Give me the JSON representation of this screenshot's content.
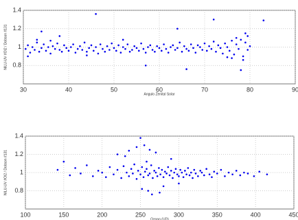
{
  "chart_data": [
    {
      "type": "scatter",
      "xlabel": "Angulo Zenital Solar",
      "ylabel": "NILU-UV #OI2 / Dobson #131",
      "color": "#0000ee",
      "grid": true,
      "xlim": [
        30,
        90
      ],
      "xticks": [
        30,
        40,
        50,
        60,
        70,
        80,
        90
      ],
      "ylim": [
        0.6,
        1.4
      ],
      "yticks": [
        0.8,
        1,
        1.2,
        1.4
      ],
      "x": [
        30.5,
        31,
        31.5,
        32,
        32.5,
        33,
        33.5,
        34,
        34.5,
        35,
        35.5,
        36,
        36.5,
        37,
        37.5,
        38,
        38.5,
        39,
        39.5,
        40,
        40.5,
        41,
        41.5,
        42,
        42.5,
        43,
        43.5,
        44,
        44.5,
        45,
        45.5,
        46,
        46.5,
        47,
        47.5,
        48,
        48.5,
        49,
        49.5,
        50,
        50.5,
        51,
        51.5,
        52,
        52.5,
        53,
        53.5,
        54,
        54.5,
        55,
        55.5,
        56,
        56.5,
        57,
        57.5,
        58,
        58.5,
        59,
        59.5,
        60,
        60.5,
        61,
        61.5,
        62,
        62.5,
        63,
        63.5,
        64,
        64.5,
        65,
        65.5,
        66,
        66.5,
        67,
        67.5,
        68,
        68.5,
        69,
        69.5,
        70,
        70.5,
        71,
        71.5,
        72,
        72.5,
        73,
        73.5,
        74,
        74.5,
        75,
        75.5,
        76,
        76.5,
        77,
        77.5,
        78,
        78.5,
        79,
        79.5,
        80,
        46,
        34,
        64,
        72,
        83,
        57,
        66,
        78,
        79,
        38,
        76,
        77,
        78.5,
        79.5,
        75,
        31,
        33,
        36,
        44,
        52
      ],
      "values": [
        0.98,
        1.02,
        0.94,
        1.0,
        0.97,
        1.05,
        0.95,
        0.99,
        1.03,
        0.96,
        1.0,
        0.93,
        1.01,
        0.98,
        1.04,
        0.97,
        0.95,
        1.02,
        0.99,
        0.96,
        1.0,
        1.03,
        0.94,
        0.98,
        1.01,
        0.97,
        1.05,
        0.95,
        0.99,
        1.02,
        0.96,
        1.0,
        0.93,
        1.03,
        0.98,
        0.95,
        1.01,
        0.97,
        1.04,
        0.99,
        0.96,
        1.02,
        0.94,
        1.0,
        0.98,
        1.03,
        0.95,
        0.97,
        1.01,
        0.99,
        0.96,
        1.04,
        0.98,
        0.94,
        1.0,
        1.02,
        0.97,
        0.95,
        1.01,
        0.99,
        0.96,
        1.03,
        0.98,
        0.94,
        1.0,
        1.02,
        0.97,
        0.99,
        1.05,
        0.95,
        1.01,
        0.98,
        0.96,
        1.03,
        0.99,
        0.94,
        1.02,
        1.0,
        0.97,
        1.04,
        0.96,
        1.01,
        0.98,
        1.06,
        0.95,
        1.02,
        0.99,
        0.93,
        1.04,
        1.0,
        0.96,
        1.07,
        0.92,
        1.03,
        0.98,
        1.08,
        0.9,
        1.05,
        0.97,
        1.01,
        1.36,
        1.17,
        1.2,
        1.3,
        1.29,
        0.8,
        0.76,
        0.75,
        1.15,
        1.12,
        0.88,
        1.1,
        0.86,
        1.12,
        0.89,
        0.9,
        1.08,
        1.07,
        0.91,
        1.08
      ]
    },
    {
      "type": "scatter",
      "xlabel": "Ozono (UD)",
      "ylabel": "NILU-UV #OI2 / Dobson #131",
      "color": "#0000ee",
      "grid": true,
      "xlim": [
        100,
        450
      ],
      "xticks": [
        100,
        150,
        200,
        250,
        300,
        350,
        400,
        450
      ],
      "ylim": [
        0.6,
        1.4
      ],
      "yticks": [
        0.8,
        1,
        1.2,
        1.4
      ],
      "x": [
        142,
        150,
        158,
        165,
        172,
        180,
        188,
        195,
        200,
        205,
        210,
        215,
        220,
        225,
        228,
        232,
        235,
        238,
        240,
        242,
        245,
        247,
        250,
        252,
        254,
        256,
        258,
        260,
        262,
        264,
        266,
        268,
        270,
        272,
        274,
        276,
        278,
        280,
        282,
        284,
        286,
        288,
        290,
        292,
        294,
        296,
        298,
        300,
        302,
        304,
        306,
        308,
        310,
        312,
        314,
        316,
        318,
        320,
        322,
        325,
        328,
        330,
        333,
        336,
        340,
        343,
        346,
        350,
        355,
        360,
        365,
        370,
        375,
        380,
        385,
        390,
        398,
        405,
        415,
        250,
        255,
        262,
        270,
        245,
        235,
        260,
        275,
        280,
        265,
        252,
        290,
        300,
        230,
        220,
        258
      ],
      "values": [
        1.03,
        1.12,
        0.97,
        1.05,
        0.99,
        1.08,
        0.96,
        1.02,
        1.0,
        0.95,
        1.06,
        0.98,
        1.03,
        0.94,
        1.07,
        1.0,
        0.96,
        1.04,
        0.99,
        1.09,
        0.93,
        1.02,
        0.98,
        1.06,
        0.95,
        1.01,
        1.04,
        0.97,
        0.99,
        1.08,
        0.94,
        1.02,
        1.0,
        0.96,
        1.05,
        0.98,
        1.03,
        0.95,
        1.01,
        0.99,
        1.06,
        0.97,
        1.02,
        0.94,
        1.0,
        1.04,
        0.98,
        0.96,
        1.03,
        1.0,
        0.95,
        1.02,
        0.98,
        1.05,
        0.97,
        1.0,
        0.94,
        1.03,
        0.99,
        0.96,
        1.02,
        1.0,
        0.97,
        1.04,
        0.98,
        0.95,
        1.01,
        0.99,
        1.03,
        0.96,
        1.0,
        0.98,
        1.02,
        0.97,
        1.0,
        0.99,
        0.96,
        1.01,
        0.98,
        1.38,
        1.3,
        1.25,
        1.22,
        1.28,
        1.24,
        0.8,
        0.78,
        0.85,
        0.76,
        0.82,
        1.15,
        0.88,
        1.18,
        1.2,
        1.12
      ]
    }
  ]
}
